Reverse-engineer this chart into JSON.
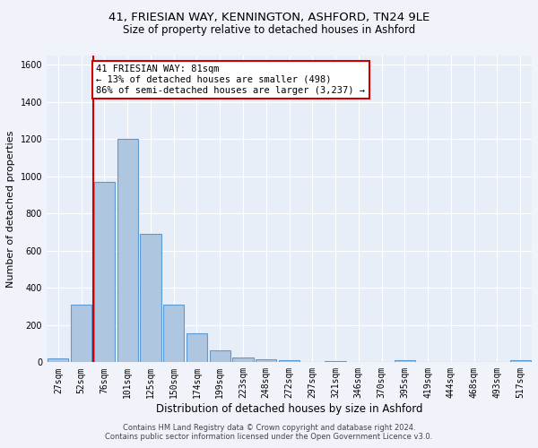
{
  "title_line1": "41, FRIESIAN WAY, KENNINGTON, ASHFORD, TN24 9LE",
  "title_line2": "Size of property relative to detached houses in Ashford",
  "xlabel": "Distribution of detached houses by size in Ashford",
  "ylabel": "Number of detached properties",
  "categories": [
    "27sqm",
    "52sqm",
    "76sqm",
    "101sqm",
    "125sqm",
    "150sqm",
    "174sqm",
    "199sqm",
    "223sqm",
    "248sqm",
    "272sqm",
    "297sqm",
    "321sqm",
    "346sqm",
    "370sqm",
    "395sqm",
    "419sqm",
    "444sqm",
    "468sqm",
    "493sqm",
    "517sqm"
  ],
  "values": [
    20,
    310,
    970,
    1200,
    690,
    310,
    155,
    65,
    25,
    15,
    10,
    0,
    5,
    0,
    0,
    10,
    0,
    0,
    0,
    0,
    10
  ],
  "bar_color": "#aec6e0",
  "bar_edge_color": "#5b9bd5",
  "annotation_line1": "41 FRIESIAN WAY: 81sqm",
  "annotation_line2": "← 13% of detached houses are smaller (498)",
  "annotation_line3": "86% of semi-detached houses are larger (3,237) →",
  "annotation_box_color": "#ffffff",
  "annotation_box_edge_color": "#cc0000",
  "vline_color": "#cc0000",
  "vline_x": 1.5,
  "ylim": [
    0,
    1650
  ],
  "yticks": [
    0,
    200,
    400,
    600,
    800,
    1000,
    1200,
    1400,
    1600
  ],
  "footer_line1": "Contains HM Land Registry data © Crown copyright and database right 2024.",
  "footer_line2": "Contains public sector information licensed under the Open Government Licence v3.0.",
  "bg_color": "#f0f4fa",
  "plot_bg_color": "#e8eef8",
  "title1_fontsize": 9.5,
  "title2_fontsize": 8.5,
  "xlabel_fontsize": 8.5,
  "ylabel_fontsize": 8,
  "tick_fontsize": 7,
  "annot_fontsize": 7.5,
  "footer_fontsize": 6
}
